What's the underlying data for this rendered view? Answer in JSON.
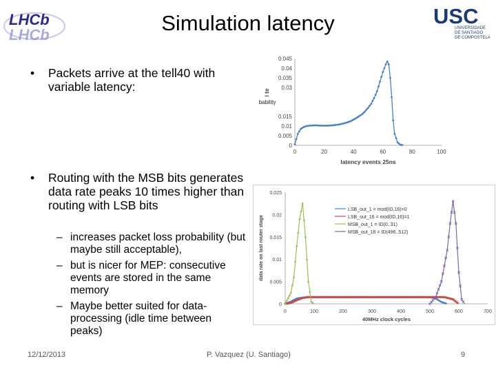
{
  "slide": {
    "title": "Simulation latency",
    "logo_left": {
      "name": "lhcb-logo",
      "text": "LHCb"
    },
    "logo_right": {
      "name": "usc-logo",
      "text": "USC",
      "subtext": [
        "UNIVERSIDADE",
        "DE SANTIAGO",
        "DE COMPOSTELA"
      ]
    },
    "bullet1": "Packets arrive at the tell40 with variable latency:",
    "bullet2": "Routing with the MSB bits generates data rate peaks 10 times higher than routing with LSB bits",
    "subbullets": [
      "increases packet loss probability (but maybe still acceptable),",
      "but is nicer for MEP: consecutive events are stored in the same memory",
      "Maybe better suited for data-processing (idle time between peaks)"
    ],
    "footer": {
      "date": "12/12/2013",
      "author": "P. Vazquez (U. Santiago)",
      "page": "9"
    },
    "colors": {
      "series_blue": "#4a7ebb",
      "series_red": "#c0504d",
      "series_green": "#9bbb59",
      "series_purple": "#8064a2"
    }
  },
  "chart_data": [
    {
      "type": "line",
      "title": "",
      "xlabel": "latency events 25ns",
      "ylabel": "probability",
      "ylabel_partial": "di te",
      "xlim": [
        0,
        100
      ],
      "ylim": [
        0,
        0.045
      ],
      "xticks": [
        "0",
        "20",
        "40",
        "60",
        "80",
        "100"
      ],
      "yticks": [
        "0",
        "0.005",
        "0.01",
        "0.015",
        "0.02",
        "0.025",
        "0.03",
        "0.035",
        "0.04",
        "0.045"
      ],
      "ytick_labels_visible": [
        "0.045",
        "0.04",
        "0.035",
        "0.03",
        "",
        "",
        "0.015",
        "0.01",
        "0.005",
        "0"
      ],
      "series": [
        {
          "color": "#4a7ebb",
          "x": [
            0,
            2,
            4,
            6,
            8,
            10,
            14,
            18,
            22,
            26,
            30,
            34,
            38,
            42,
            46,
            48,
            50,
            52,
            54,
            56,
            58,
            60,
            62,
            63,
            64,
            65,
            66,
            67,
            68,
            70,
            72,
            74
          ],
          "y": [
            0.0005,
            0.006,
            0.0085,
            0.0095,
            0.01,
            0.0102,
            0.0104,
            0.0102,
            0.0102,
            0.0104,
            0.0108,
            0.0115,
            0.0125,
            0.0142,
            0.0162,
            0.0178,
            0.0195,
            0.0215,
            0.0245,
            0.028,
            0.033,
            0.038,
            0.042,
            0.0435,
            0.042,
            0.035,
            0.025,
            0.013,
            0.006,
            0.0015,
            0.0003,
            0.0001
          ]
        }
      ]
    },
    {
      "type": "line",
      "title": "",
      "xlabel": "40MHz clock cycles",
      "ylabel": "data rate on last router stage",
      "xlim": [
        0,
        700
      ],
      "ylim": [
        0,
        0.025
      ],
      "xticks": [
        "0",
        "100",
        "200",
        "300",
        "400",
        "500",
        "600",
        "700"
      ],
      "yticks": [
        "0",
        "0.005",
        "0.01",
        "0.015",
        "0.02",
        "0.025"
      ],
      "legend_position": "top-center",
      "series": [
        {
          "name": "LSB_out_1 = mod(ID,16)=0",
          "color": "#4a7ebb",
          "x": [
            0,
            20,
            40,
            60,
            80,
            100,
            200,
            300,
            400,
            500,
            520,
            540,
            560
          ],
          "y": [
            0,
            0.0005,
            0.0012,
            0.0014,
            0.0015,
            0.0015,
            0.0015,
            0.0015,
            0.0015,
            0.0015,
            0.0012,
            0.0004,
            0
          ]
        },
        {
          "name": "LSB_out_16 = mod(ID,16)=1",
          "color": "#c0504d",
          "x": [
            0,
            20,
            40,
            60,
            80,
            100,
            200,
            300,
            400,
            500,
            550,
            580,
            600
          ],
          "y": [
            0,
            0.0002,
            0.0008,
            0.0013,
            0.0015,
            0.0015,
            0.0015,
            0.0015,
            0.0015,
            0.0015,
            0.0015,
            0.001,
            0
          ]
        },
        {
          "name": "MSB_out_1 = ID(0..31)",
          "color": "#9bbb59",
          "x": [
            0,
            20,
            30,
            40,
            50,
            60,
            70,
            80,
            90,
            100
          ],
          "y": [
            0,
            0.0025,
            0.006,
            0.013,
            0.019,
            0.0225,
            0.015,
            0.005,
            0.0005,
            0
          ]
        },
        {
          "name": "MSB_out_16 = ID(496..512)",
          "color": "#8064a2",
          "x": [
            500,
            520,
            540,
            560,
            570,
            580,
            590,
            600,
            610,
            620
          ],
          "y": [
            0,
            0.0015,
            0.005,
            0.012,
            0.018,
            0.023,
            0.018,
            0.007,
            0.001,
            0
          ]
        }
      ]
    }
  ]
}
